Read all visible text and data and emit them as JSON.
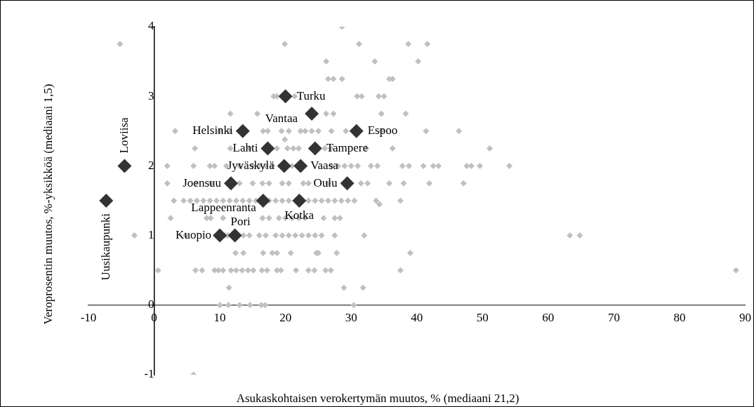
{
  "chart_data": {
    "type": "scatter",
    "xlabel": "Asukaskohtaisen verokertymän muutos, % (mediaani 21,2)",
    "ylabel": "Veroprosentin muutos, %-yksikköä (mediaani 1,5)",
    "xlim": [
      -10,
      90
    ],
    "xticks": [
      -10,
      0,
      10,
      20,
      30,
      40,
      50,
      60,
      70,
      80,
      90
    ],
    "ylim": [
      -1,
      4
    ],
    "yticks": [
      -1,
      0,
      1,
      2,
      3,
      4
    ],
    "grid": false,
    "legend": false,
    "marker": "diamond",
    "series": [
      {
        "color": "#c0c0c0",
        "x": [
          28.6,
          -5.2,
          19.9,
          31.2,
          38.7,
          41.6,
          26.2,
          33.6,
          40.2,
          26.5,
          27.3,
          28.6,
          35.8,
          36.3,
          18.2,
          18.7,
          21.4,
          30.9,
          31.6,
          34.2,
          35,
          11.6,
          15.7,
          26.2,
          27.3,
          34.6,
          38.3,
          3.2,
          10,
          11.5,
          16.6,
          17.3,
          19.4,
          20.5,
          22.3,
          23,
          24,
          25,
          27,
          29.2,
          34.6,
          41.4,
          46.4,
          19.9,
          6.2,
          11.6,
          14.5,
          18.7,
          20.3,
          21.2,
          22,
          26,
          26.9,
          32.3,
          36.3,
          51.1,
          2,
          6,
          8.5,
          9.2,
          11,
          13,
          15,
          16,
          17,
          18,
          21,
          27,
          28,
          29,
          30,
          31,
          33,
          34,
          37.8,
          38.8,
          41,
          42.5,
          43.3,
          47.6,
          48.3,
          49.6,
          54.1,
          2,
          6.4,
          8.7,
          13,
          15,
          16.5,
          17.5,
          19.5,
          20.5,
          22.7,
          23.5,
          26.5,
          31.5,
          32.5,
          35.8,
          38,
          41.9,
          47.1,
          3,
          4.5,
          5.5,
          6.5,
          7.5,
          8.5,
          9.5,
          10.5,
          11.5,
          12.5,
          13.5,
          14.5,
          15.5,
          17.5,
          18.5,
          19.5,
          20.5,
          23.5,
          24.5,
          25.5,
          26.5,
          27.5,
          28.5,
          29.5,
          30.5,
          33.8,
          34.3,
          37.5,
          2.5,
          8,
          8.6,
          10.5,
          16.5,
          17.5,
          19,
          20,
          21,
          22,
          23,
          25.8,
          27.5,
          28.3,
          -3,
          4.8,
          10.8,
          11.2,
          13.6,
          14.5,
          16,
          17,
          18.5,
          19.5,
          20.5,
          21.5,
          22.5,
          23.5,
          24.5,
          25.5,
          27.5,
          32,
          63.3,
          64.8,
          12.4,
          13.6,
          16.6,
          18,
          18.7,
          20.8,
          24.7,
          25,
          27.8,
          39,
          0.6,
          6.3,
          7.3,
          9.2,
          9.8,
          10.5,
          11.7,
          12.5,
          13.4,
          14.3,
          15.1,
          16.4,
          17.2,
          18.7,
          19.3,
          21.6,
          23.5,
          24.4,
          26.1,
          26.9,
          37.5,
          88.6,
          11.4,
          28.9,
          31.8,
          10,
          11.3,
          13,
          14.6,
          16.3,
          16.9,
          30.4,
          6
        ],
        "values": [
          4,
          3.75,
          3.75,
          3.75,
          3.75,
          3.75,
          3.5,
          3.5,
          3.5,
          3.25,
          3.25,
          3.25,
          3.25,
          3.25,
          3,
          3,
          3,
          3,
          3,
          3,
          3,
          2.75,
          2.75,
          2.75,
          2.75,
          2.75,
          2.75,
          2.5,
          2.5,
          2.5,
          2.5,
          2.5,
          2.5,
          2.5,
          2.5,
          2.5,
          2.5,
          2.5,
          2.5,
          2.5,
          2.5,
          2.5,
          2.5,
          2.38,
          2.25,
          2.25,
          2.25,
          2.25,
          2.25,
          2.25,
          2.25,
          2.25,
          2.25,
          2.25,
          2.25,
          2.25,
          2,
          2,
          2,
          2,
          2,
          2,
          2,
          2,
          2,
          2,
          2,
          2,
          2,
          2,
          2,
          2,
          2,
          2,
          2,
          2,
          2,
          2,
          2,
          2,
          2,
          2,
          2,
          1.75,
          1.75,
          1.75,
          1.75,
          1.75,
          1.75,
          1.75,
          1.75,
          1.75,
          1.75,
          1.75,
          1.75,
          1.75,
          1.75,
          1.75,
          1.75,
          1.75,
          1.75,
          1.5,
          1.5,
          1.5,
          1.5,
          1.5,
          1.5,
          1.5,
          1.5,
          1.5,
          1.5,
          1.5,
          1.5,
          1.5,
          1.5,
          1.5,
          1.5,
          1.5,
          1.5,
          1.5,
          1.5,
          1.5,
          1.5,
          1.5,
          1.5,
          1.5,
          1.5,
          1.45,
          1.5,
          1.25,
          1.25,
          1.25,
          1.25,
          1.25,
          1.25,
          1.25,
          1.25,
          1.25,
          1.25,
          1.25,
          1.25,
          1.25,
          1.25,
          1,
          1,
          1,
          1,
          1,
          1,
          1,
          1,
          1,
          1,
          1,
          1,
          1,
          1,
          1,
          1,
          1,
          1,
          1,
          1,
          0.75,
          0.75,
          0.75,
          0.75,
          0.75,
          0.75,
          0.75,
          0.75,
          0.75,
          0.75,
          0.5,
          0.5,
          0.5,
          0.5,
          0.5,
          0.5,
          0.5,
          0.5,
          0.5,
          0.5,
          0.5,
          0.5,
          0.5,
          0.5,
          0.5,
          0.5,
          0.5,
          0.5,
          0.5,
          0.5,
          0.5,
          0.5,
          0.25,
          0.25,
          0.25,
          0,
          0,
          0,
          0,
          0,
          0,
          0,
          -1
        ]
      },
      {
        "color": "#333333",
        "x": [
          20,
          24,
          13.5,
          30.8,
          17.3,
          24.5,
          19.8,
          22.3,
          29.4,
          11.7,
          -4.5,
          -7.3,
          16.6,
          22.1,
          10,
          12.3
        ],
        "values": [
          3,
          2.75,
          2.5,
          2.5,
          2.25,
          2.25,
          2,
          2,
          1.75,
          1.75,
          2,
          1.5,
          1.5,
          1.5,
          1,
          1
        ]
      }
    ],
    "annotations": [
      {
        "text": "Turku",
        "x": 20,
        "y": 3
      },
      {
        "text": "Vantaa",
        "x": 24,
        "y": 2.75
      },
      {
        "text": "Helsinki",
        "x": 13.5,
        "y": 2.5
      },
      {
        "text": "Espoo",
        "x": 30.8,
        "y": 2.5
      },
      {
        "text": "Lahti",
        "x": 17.3,
        "y": 2.25
      },
      {
        "text": "Tampere",
        "x": 24.5,
        "y": 2.25
      },
      {
        "text": "Jyväskylä",
        "x": 19.8,
        "y": 2
      },
      {
        "text": "Vaasa",
        "x": 22.3,
        "y": 2
      },
      {
        "text": "Oulu",
        "x": 29.4,
        "y": 1.75
      },
      {
        "text": "Joensuu",
        "x": 11.7,
        "y": 1.75
      },
      {
        "text": "Loviisa",
        "x": -4.5,
        "y": 2
      },
      {
        "text": "Uusikaupunki",
        "x": -7.3,
        "y": 1.5
      },
      {
        "text": "Lappeenranta",
        "x": 16.6,
        "y": 1.5
      },
      {
        "text": "Kotka",
        "x": 22.1,
        "y": 1.5
      },
      {
        "text": "Kuopio",
        "x": 10,
        "y": 1
      },
      {
        "text": "Pori",
        "x": 12.3,
        "y": 1
      }
    ]
  }
}
